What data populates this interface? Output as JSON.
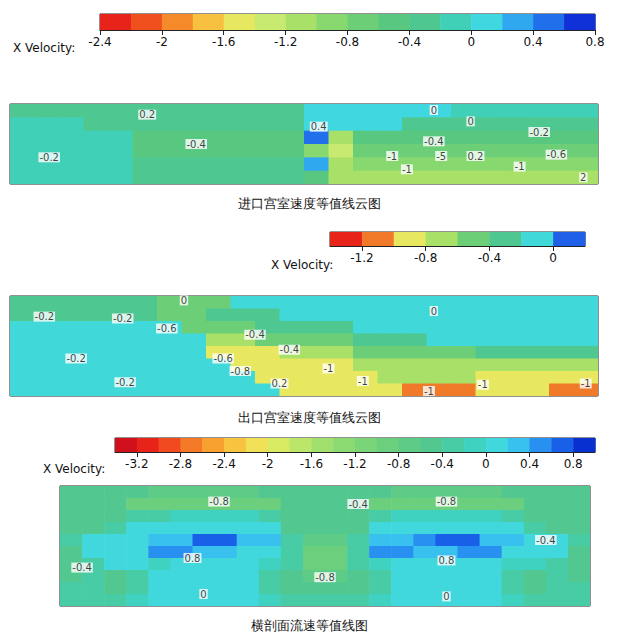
{
  "chart_data": [
    {
      "type": "contour",
      "title": "进口宫室速度等值线云图",
      "tick_labels": false,
      "colorbar": {
        "label": "X Velocity:",
        "lim": [
          -2.4,
          0.8
        ],
        "ticks": [
          -2.4,
          -2,
          -1.6,
          -1.2,
          -0.8,
          -0.4,
          0,
          0.4,
          0.8
        ],
        "colors": [
          "#e8231a",
          "#f0501e",
          "#f58a2a",
          "#f8c040",
          "#e8e860",
          "#c8ea70",
          "#a8e068",
          "#88d870",
          "#6ccf78",
          "#58c880",
          "#4ec890",
          "#40d0b8",
          "#40d8e0",
          "#30a8f0",
          "#2070ec",
          "#1030d8"
        ]
      },
      "cells": [
        [
          -0.3,
          -0.3,
          -0.3,
          -0.3,
          -0.3,
          -0.3,
          -0.3,
          -0.3,
          -0.3,
          -0.3,
          -0.3,
          -0.3,
          0.1,
          0.1,
          0.1,
          0.1,
          0.1,
          0.1,
          -0.1,
          -0.1,
          -0.1,
          -0.1,
          -0.1,
          -0.1
        ],
        [
          -0.1,
          -0.1,
          -0.1,
          -0.3,
          -0.3,
          -0.3,
          -0.3,
          -0.3,
          -0.3,
          -0.3,
          -0.3,
          -0.3,
          0.1,
          0.1,
          0.1,
          0.1,
          -0.3,
          -0.3,
          -0.3,
          -0.3,
          -0.3,
          -0.3,
          -0.3,
          -0.3
        ],
        [
          -0.1,
          -0.1,
          -0.1,
          -0.1,
          -0.1,
          -0.5,
          -0.5,
          -0.5,
          -0.5,
          -0.5,
          -0.5,
          -0.5,
          0.5,
          -1.1,
          -0.5,
          -0.5,
          -0.5,
          -0.5,
          -0.5,
          -0.5,
          -0.5,
          -0.5,
          -0.5,
          -0.5
        ],
        [
          -0.1,
          -0.1,
          -0.1,
          -0.1,
          -0.1,
          -0.5,
          -0.5,
          -0.5,
          -0.5,
          -0.5,
          -0.5,
          -0.5,
          -0.9,
          -1.3,
          -0.7,
          -0.7,
          -0.7,
          -0.7,
          -0.7,
          -0.7,
          -0.7,
          -0.7,
          -0.7,
          -0.7
        ],
        [
          -0.1,
          -0.1,
          -0.1,
          -0.1,
          -0.1,
          -0.3,
          -0.3,
          -0.3,
          -0.3,
          -0.3,
          -0.3,
          -0.3,
          0.3,
          -1.1,
          -0.9,
          -0.9,
          -0.9,
          -0.9,
          -0.9,
          -0.9,
          -0.9,
          -0.9,
          -0.9,
          -0.9
        ],
        [
          -0.1,
          -0.1,
          -0.1,
          -0.1,
          -0.1,
          -0.3,
          -0.3,
          -0.3,
          -0.3,
          -0.3,
          -0.3,
          -0.3,
          -0.5,
          -1.1,
          -1.1,
          -1.1,
          -1.1,
          -1.1,
          -1.1,
          -1.1,
          -1.1,
          -1.1,
          -1.1,
          -1.1
        ]
      ],
      "annotations": [
        {
          "x": 5.6,
          "y": 0.8,
          "text": "0.2"
        },
        {
          "x": 7.6,
          "y": 3.0,
          "text": "-0.4"
        },
        {
          "x": 1.6,
          "y": 4.0,
          "text": "-0.2"
        },
        {
          "x": 17.3,
          "y": 0.45,
          "text": "0"
        },
        {
          "x": 18.8,
          "y": 1.3,
          "text": "0"
        },
        {
          "x": 12.6,
          "y": 1.7,
          "text": "0.4"
        },
        {
          "x": 17.3,
          "y": 2.8,
          "text": "-0.4"
        },
        {
          "x": 21.6,
          "y": 2.1,
          "text": "-0.2"
        },
        {
          "x": 22.3,
          "y": 3.8,
          "text": "-0.6"
        },
        {
          "x": 15.6,
          "y": 3.9,
          "text": "-1"
        },
        {
          "x": 16.2,
          "y": 4.9,
          "text": "-1"
        },
        {
          "x": 17.6,
          "y": 3.9,
          "text": "-5"
        },
        {
          "x": 19.0,
          "y": 3.9,
          "text": "0.2"
        },
        {
          "x": 20.8,
          "y": 4.7,
          "text": "-1"
        },
        {
          "x": 23.4,
          "y": 5.5,
          "text": "2"
        }
      ]
    },
    {
      "type": "contour",
      "title": "出口宫室速度等值线云图",
      "tick_labels": false,
      "colorbar": {
        "label": "X Velocity:",
        "lim": [
          -1.4,
          0.2
        ],
        "ticks": [
          -1.2,
          -0.8,
          -0.4,
          0
        ],
        "colors": [
          "#e8231a",
          "#f07a2a",
          "#e8e860",
          "#a8e068",
          "#6ccf78",
          "#4ec890",
          "#40d8d8",
          "#2060e8"
        ]
      },
      "cells": [
        [
          -0.3,
          -0.3,
          -0.3,
          -0.3,
          -0.3,
          -0.3,
          -0.5,
          -0.5,
          -0.5,
          -0.1,
          -0.1,
          -0.1,
          -0.1,
          -0.1,
          -0.1,
          -0.1,
          -0.1,
          -0.1,
          -0.1,
          -0.1,
          -0.1,
          -0.1,
          -0.1,
          -0.1
        ],
        [
          -0.3,
          -0.3,
          -0.3,
          -0.3,
          -0.3,
          -0.3,
          -0.5,
          -0.5,
          -0.3,
          -0.3,
          -0.3,
          -0.1,
          -0.1,
          -0.1,
          -0.1,
          -0.1,
          -0.1,
          -0.1,
          -0.1,
          -0.1,
          -0.1,
          -0.1,
          -0.1,
          -0.1
        ],
        [
          -0.1,
          -0.1,
          -0.1,
          -0.1,
          -0.1,
          -0.1,
          -0.1,
          -0.5,
          -0.5,
          -0.5,
          -0.3,
          -0.3,
          -0.3,
          -0.3,
          -0.1,
          -0.1,
          -0.1,
          -0.1,
          -0.1,
          -0.1,
          -0.1,
          -0.1,
          -0.1,
          -0.1
        ],
        [
          -0.1,
          -0.1,
          -0.1,
          -0.1,
          -0.1,
          -0.1,
          -0.1,
          -0.1,
          -0.7,
          -0.7,
          -0.5,
          -0.5,
          -0.5,
          -0.5,
          -0.3,
          -0.3,
          -0.3,
          -0.1,
          -0.1,
          -0.1,
          -0.1,
          -0.1,
          -0.1,
          -0.1
        ],
        [
          -0.1,
          -0.1,
          -0.1,
          -0.1,
          -0.1,
          -0.1,
          -0.1,
          -0.1,
          -0.9,
          -0.9,
          -0.9,
          -0.7,
          -0.7,
          -0.7,
          -0.5,
          -0.5,
          -0.5,
          -0.5,
          -0.5,
          -0.3,
          -0.3,
          -0.3,
          -0.3,
          -0.3
        ],
        [
          -0.1,
          -0.1,
          -0.1,
          -0.1,
          -0.1,
          -0.1,
          -0.1,
          -0.1,
          -0.1,
          -0.9,
          -0.9,
          -0.9,
          -0.9,
          -0.9,
          -0.7,
          -0.7,
          -0.7,
          -0.7,
          -0.7,
          -0.7,
          -0.7,
          -0.7,
          -0.7,
          -0.7
        ],
        [
          -0.1,
          -0.1,
          -0.1,
          -0.1,
          -0.1,
          -0.1,
          -0.1,
          -0.1,
          -0.1,
          -0.1,
          -0.9,
          -0.9,
          -0.9,
          -0.9,
          -0.9,
          -0.7,
          -0.7,
          -0.7,
          -0.7,
          -0.9,
          -0.9,
          -0.9,
          -0.9,
          -0.9
        ],
        [
          -0.1,
          -0.1,
          -0.1,
          -0.1,
          -0.1,
          -0.1,
          -0.1,
          -0.1,
          -0.1,
          -0.1,
          -0.1,
          -0.9,
          -0.9,
          -0.9,
          -0.9,
          -0.9,
          -1.1,
          -1.1,
          -1.1,
          -0.9,
          -0.9,
          -0.9,
          -1.1,
          -1.1
        ]
      ],
      "annotations": [
        {
          "x": 7.1,
          "y": 0.35,
          "text": "0"
        },
        {
          "x": 1.4,
          "y": 1.65,
          "text": "-0.2"
        },
        {
          "x": 4.6,
          "y": 1.8,
          "text": "-0.2"
        },
        {
          "x": 6.4,
          "y": 2.6,
          "text": "-0.6"
        },
        {
          "x": 17.3,
          "y": 1.2,
          "text": "0"
        },
        {
          "x": 10.0,
          "y": 3.1,
          "text": "-0.4"
        },
        {
          "x": 11.4,
          "y": 4.3,
          "text": "-0.4"
        },
        {
          "x": 8.7,
          "y": 5.0,
          "text": "-0.6"
        },
        {
          "x": 9.4,
          "y": 6.0,
          "text": "-0.8"
        },
        {
          "x": 2.7,
          "y": 5.0,
          "text": "-0.2"
        },
        {
          "x": 4.7,
          "y": 6.9,
          "text": "-0.2"
        },
        {
          "x": 11.0,
          "y": 7.0,
          "text": "0.2"
        },
        {
          "x": 13.0,
          "y": 5.8,
          "text": "-1"
        },
        {
          "x": 14.4,
          "y": 6.8,
          "text": "-1"
        },
        {
          "x": 17.1,
          "y": 7.6,
          "text": "-1"
        },
        {
          "x": 19.3,
          "y": 7.1,
          "text": "-1"
        },
        {
          "x": 23.5,
          "y": 7.0,
          "text": "-1"
        }
      ]
    },
    {
      "type": "contour",
      "title": "横剖面流速等值线图",
      "tick_labels": false,
      "colorbar": {
        "label": "X Velocity:",
        "lim": [
          -3.4,
          1.0
        ],
        "ticks": [
          -3.2,
          -2.8,
          -2.4,
          -2,
          -1.6,
          -1.2,
          -0.8,
          -0.4,
          0,
          0.4,
          0.8
        ],
        "colors": [
          "#d0101a",
          "#e8231a",
          "#f04a1e",
          "#f57a28",
          "#f8a030",
          "#f8c440",
          "#f0e058",
          "#d8ea62",
          "#bce66a",
          "#a2e06e",
          "#8cda72",
          "#7ad478",
          "#6ccf7e",
          "#5ecb86",
          "#52c890",
          "#48cca6",
          "#40d2c0",
          "#40d8dc",
          "#38c0ee",
          "#2890f0",
          "#1860e8",
          "#0830d0"
        ]
      },
      "cells": [
        [
          -0.5,
          -0.5,
          -0.5,
          -0.5,
          -0.7,
          -0.7,
          -0.7,
          -0.7,
          -0.7,
          -0.5,
          -0.5,
          -0.5,
          -0.5,
          -0.5,
          -0.5,
          -0.7,
          -0.7,
          -0.7,
          -0.7,
          -0.7,
          -0.5,
          -0.5,
          -0.5,
          -0.5
        ],
        [
          -0.5,
          -0.5,
          -0.5,
          -0.9,
          -0.9,
          -0.9,
          -0.9,
          -0.9,
          -0.9,
          -0.9,
          -0.5,
          -0.5,
          -0.5,
          -0.5,
          -0.9,
          -0.9,
          -0.9,
          -0.9,
          -0.9,
          -0.9,
          -0.9,
          -0.5,
          -0.5,
          -0.5
        ],
        [
          -0.5,
          -0.5,
          -0.5,
          -0.3,
          -0.3,
          -0.1,
          -0.1,
          -0.1,
          -0.1,
          -0.3,
          -0.5,
          -0.5,
          -0.5,
          -0.5,
          -0.3,
          -0.1,
          -0.1,
          -0.1,
          -0.1,
          -0.1,
          -0.3,
          -0.5,
          -0.5,
          -0.5
        ],
        [
          -0.5,
          -0.5,
          -0.3,
          0.1,
          0.1,
          0.1,
          0.1,
          0.1,
          0.1,
          0.1,
          -0.5,
          -0.5,
          -0.5,
          -0.5,
          0.1,
          0.1,
          0.1,
          0.1,
          0.1,
          0.1,
          0.1,
          -0.3,
          -0.5,
          -0.5
        ],
        [
          -0.3,
          0.1,
          0.1,
          0.1,
          0.3,
          0.3,
          0.7,
          0.7,
          0.3,
          0.3,
          -0.3,
          -0.7,
          -0.7,
          -0.3,
          0.3,
          0.3,
          0.5,
          0.7,
          0.7,
          0.3,
          0.3,
          0.1,
          0.1,
          -0.3
        ],
        [
          -0.5,
          0.1,
          0.1,
          0.1,
          0.5,
          0.5,
          0.3,
          0.3,
          0.1,
          0.1,
          -0.3,
          -0.9,
          -0.9,
          -0.3,
          0.5,
          0.5,
          0.3,
          0.3,
          0.5,
          0.5,
          0.1,
          0.1,
          0.1,
          -0.5
        ],
        [
          -0.5,
          -0.3,
          0.1,
          0.1,
          -0.1,
          0.1,
          0.1,
          0.1,
          0.1,
          -0.1,
          -0.3,
          -0.9,
          -0.9,
          -0.3,
          -0.1,
          0.1,
          0.1,
          0.1,
          0.1,
          0.1,
          -0.1,
          -0.1,
          -0.3,
          -0.5
        ],
        [
          -0.5,
          -0.3,
          -0.5,
          -0.3,
          0.1,
          0.1,
          0.1,
          0.1,
          0.1,
          -0.3,
          -0.5,
          -0.7,
          -0.7,
          -0.5,
          -0.3,
          0.1,
          0.1,
          0.1,
          0.1,
          0.1,
          -0.3,
          -0.5,
          -0.3,
          -0.5
        ],
        [
          -0.3,
          -0.3,
          -0.5,
          -0.3,
          0.1,
          0.1,
          0.1,
          0.1,
          0.1,
          -0.3,
          -0.5,
          -0.5,
          -0.5,
          -0.5,
          -0.3,
          0.1,
          0.1,
          0.1,
          0.1,
          0.1,
          -0.3,
          -0.5,
          -0.3,
          -0.3
        ],
        [
          -0.3,
          -0.3,
          -0.3,
          -0.1,
          0.1,
          0.1,
          0.1,
          0.1,
          0.1,
          -0.1,
          -0.3,
          -0.3,
          -0.3,
          -0.3,
          -0.1,
          0.1,
          0.1,
          0.1,
          0.1,
          0.1,
          -0.1,
          -0.3,
          -0.3,
          -0.3
        ]
      ],
      "annotations": [
        {
          "x": 7.2,
          "y": 1.3,
          "text": "-0.8"
        },
        {
          "x": 13.5,
          "y": 1.5,
          "text": "-0.4"
        },
        {
          "x": 17.5,
          "y": 1.3,
          "text": "-0.8"
        },
        {
          "x": 22.0,
          "y": 4.5,
          "text": "-0.4"
        },
        {
          "x": 1.0,
          "y": 6.8,
          "text": "-0.4"
        },
        {
          "x": 6.0,
          "y": 6.0,
          "text": "0.8"
        },
        {
          "x": 17.5,
          "y": 6.2,
          "text": "0.8"
        },
        {
          "x": 12.0,
          "y": 7.6,
          "text": "-0.8"
        },
        {
          "x": 6.5,
          "y": 9.0,
          "text": "0"
        },
        {
          "x": 17.5,
          "y": 9.2,
          "text": "0"
        }
      ]
    }
  ]
}
